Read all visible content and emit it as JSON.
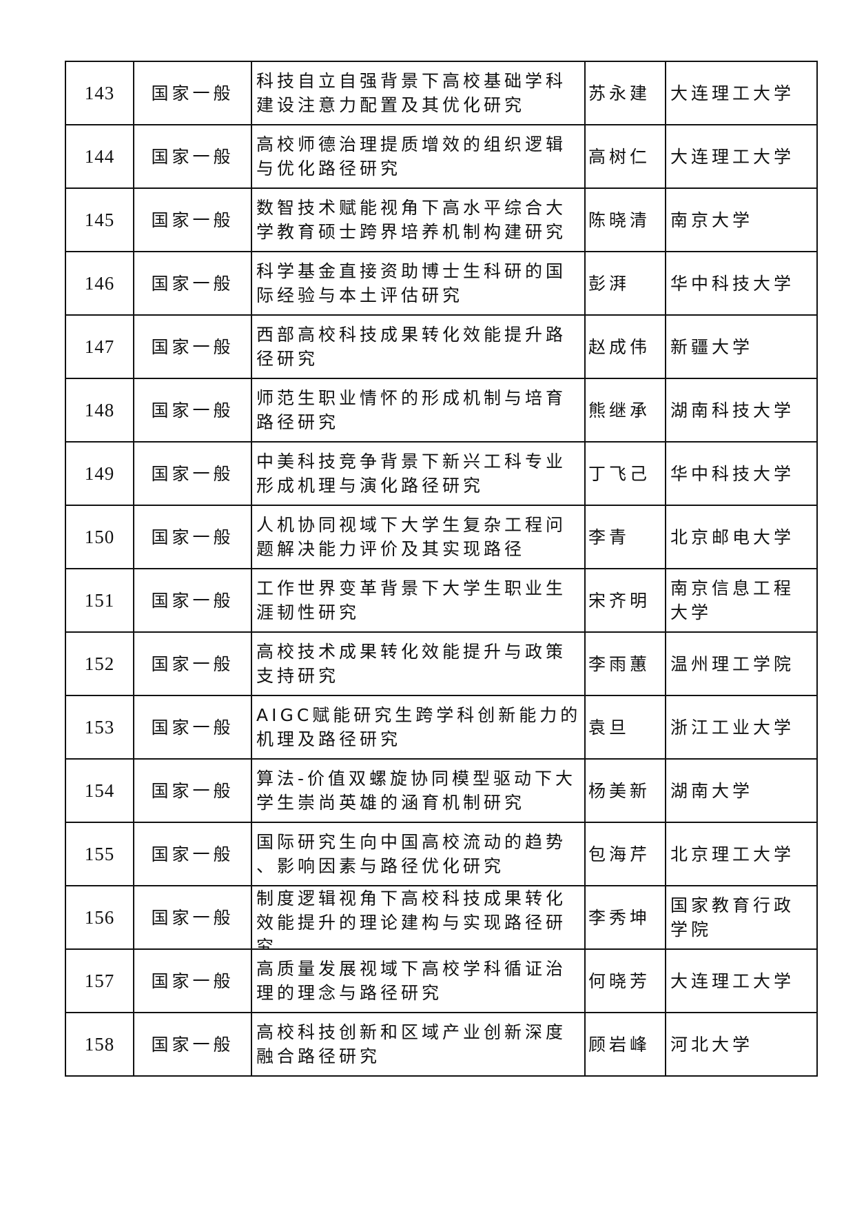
{
  "rows": [
    {
      "no": "143",
      "category": "国家一般",
      "title": [
        "科技自立自强背景下高校基础学科",
        "建设注意力配置及其优化研究"
      ],
      "name": "苏永建",
      "institution": [
        "大连理工大学"
      ]
    },
    {
      "no": "144",
      "category": "国家一般",
      "title": [
        "高校师德治理提质增效的组织逻辑",
        "与优化路径研究"
      ],
      "name": "高树仁",
      "institution": [
        "大连理工大学"
      ]
    },
    {
      "no": "145",
      "category": "国家一般",
      "title": [
        "数智技术赋能视角下高水平综合大",
        "学教育硕士跨界培养机制构建研究"
      ],
      "name": "陈晓清",
      "institution": [
        "南京大学"
      ]
    },
    {
      "no": "146",
      "category": "国家一般",
      "title": [
        "科学基金直接资助博士生科研的国",
        "际经验与本土评估研究"
      ],
      "name": "彭湃",
      "institution": [
        "华中科技大学"
      ]
    },
    {
      "no": "147",
      "category": "国家一般",
      "title": [
        "西部高校科技成果转化效能提升路",
        "径研究"
      ],
      "name": "赵成伟",
      "institution": [
        "新疆大学"
      ]
    },
    {
      "no": "148",
      "category": "国家一般",
      "title": [
        "师范生职业情怀的形成机制与培育",
        "路径研究"
      ],
      "name": "熊继承",
      "institution": [
        "湖南科技大学"
      ]
    },
    {
      "no": "149",
      "category": "国家一般",
      "title": [
        "中美科技竞争背景下新兴工科专业",
        "形成机理与演化路径研究"
      ],
      "name": "丁飞己",
      "institution": [
        "华中科技大学"
      ]
    },
    {
      "no": "150",
      "category": "国家一般",
      "title": [
        "人机协同视域下大学生复杂工程问",
        "题解决能力评价及其实现路径"
      ],
      "name": "李青",
      "institution": [
        "北京邮电大学"
      ]
    },
    {
      "no": "151",
      "category": "国家一般",
      "title": [
        "工作世界变革背景下大学生职业生",
        "涯韧性研究"
      ],
      "name": "宋齐明",
      "institution": [
        "南京信息工程",
        "大学"
      ]
    },
    {
      "no": "152",
      "category": "国家一般",
      "title": [
        "高校技术成果转化效能提升与政策",
        "支持研究"
      ],
      "name": "李雨蕙",
      "institution": [
        "温州理工学院"
      ]
    },
    {
      "no": "153",
      "category": "国家一般",
      "title": [
        "AIGC赋能研究生跨学科创新能力的",
        "机理及路径研究"
      ],
      "name": "袁旦",
      "institution": [
        "浙江工业大学"
      ]
    },
    {
      "no": "154",
      "category": "国家一般",
      "title": [
        "算法-价值双螺旋协同模型驱动下大",
        "学生崇尚英雄的涵育机制研究"
      ],
      "name": "杨美新",
      "institution": [
        "湖南大学"
      ]
    },
    {
      "no": "155",
      "category": "国家一般",
      "title": [
        "国际研究生向中国高校流动的趋势",
        "、影响因素与路径优化研究"
      ],
      "name": "包海芹",
      "institution": [
        "北京理工大学"
      ]
    },
    {
      "no": "156",
      "category": "国家一般",
      "title": [
        "制度逻辑视角下高校科技成果转化",
        "效能提升的理论建构与实现路径研",
        "究"
      ],
      "name": "李秀坤",
      "institution": [
        "国家教育行政",
        "学院"
      ]
    },
    {
      "no": "157",
      "category": "国家一般",
      "title": [
        "高质量发展视域下高校学科循证治",
        "理的理念与路径研究"
      ],
      "name": "何晓芳",
      "institution": [
        "大连理工大学"
      ]
    },
    {
      "no": "158",
      "category": "国家一般",
      "title": [
        "高校科技创新和区域产业创新深度",
        "融合路径研究"
      ],
      "name": "顾岩峰",
      "institution": [
        "河北大学"
      ]
    }
  ]
}
